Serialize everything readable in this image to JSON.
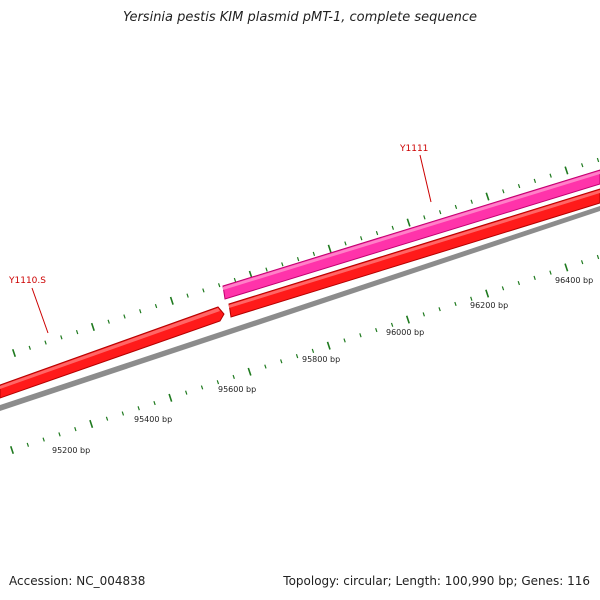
{
  "title": "Yersinia pestis KIM plasmid pMT-1, complete sequence",
  "footer": {
    "accession": "Accession: NC_004838",
    "stats": "Topology: circular; Length: 100,990 bp; Genes: 116"
  },
  "genes": [
    {
      "name": "Y1110.S",
      "color": "#ff1a1a",
      "strand": "reverse"
    },
    {
      "name": "Y1111",
      "color": "#ff33aa",
      "strand": "forward"
    },
    {
      "name": "",
      "color": "#ff1a1a",
      "strand": "reverse"
    }
  ],
  "scale_labels": [
    "95200 bp",
    "95400 bp",
    "95600 bp",
    "95800 bp",
    "96000 bp",
    "96200 bp",
    "96400 bp"
  ],
  "colors": {
    "backbone": "#8c8c8c",
    "ticks": "#1f7a1f",
    "label": "#cc0000"
  }
}
